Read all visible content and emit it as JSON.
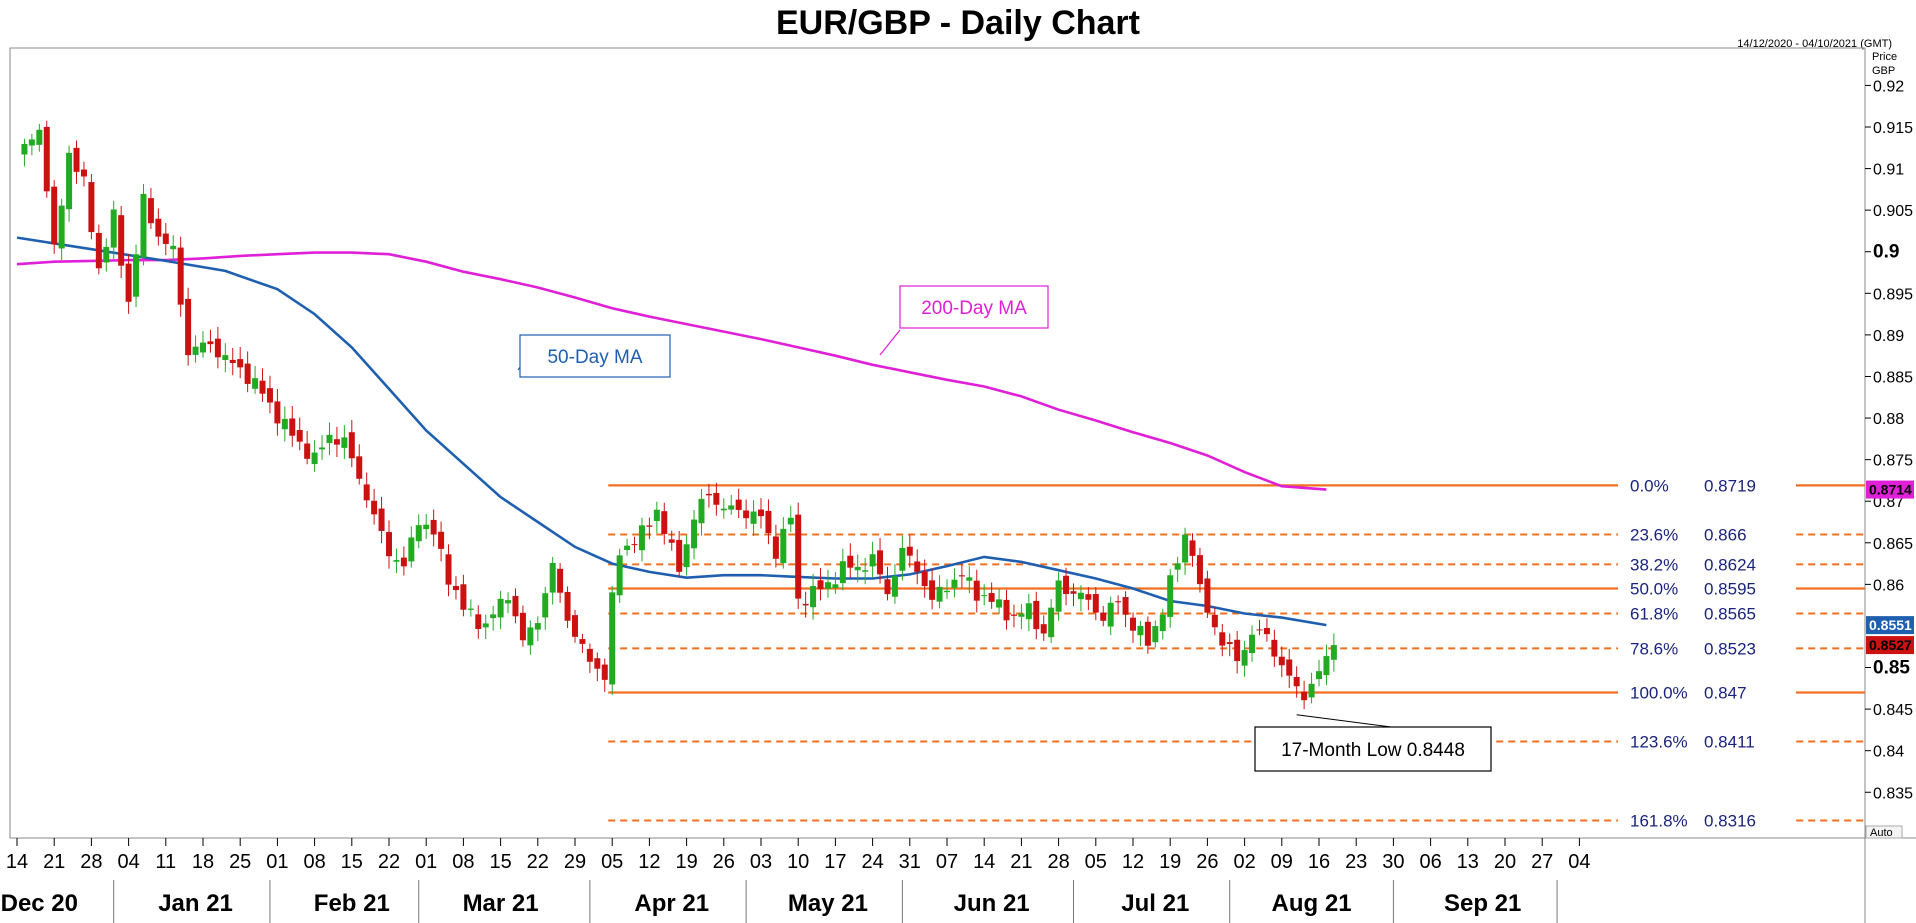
{
  "chart_data": {
    "type": "candlestick",
    "title": "EUR/GBP - Daily Chart",
    "date_range": "14/12/2020 - 04/10/2021 (GMT)",
    "y_axis_title": [
      "Price",
      "GBP"
    ],
    "auto_label": "Auto",
    "ylim": [
      0.8295,
      0.9245
    ],
    "y_ticks": [
      {
        "value": 0.92,
        "label": "0.92"
      },
      {
        "value": 0.915,
        "label": "0.915"
      },
      {
        "value": 0.91,
        "label": "0.91"
      },
      {
        "value": 0.905,
        "label": "0.905"
      },
      {
        "value": 0.9,
        "label": "0.9",
        "bold": true
      },
      {
        "value": 0.895,
        "label": "0.895"
      },
      {
        "value": 0.89,
        "label": "0.89"
      },
      {
        "value": 0.885,
        "label": "0.885"
      },
      {
        "value": 0.88,
        "label": "0.88"
      },
      {
        "value": 0.875,
        "label": "0.875"
      },
      {
        "value": 0.87,
        "label": "0.87"
      },
      {
        "value": 0.865,
        "label": "0.865"
      },
      {
        "value": 0.86,
        "label": "0.86"
      },
      {
        "value": 0.85,
        "label": "0.85",
        "bold": true
      },
      {
        "value": 0.845,
        "label": "0.845"
      },
      {
        "value": 0.84,
        "label": "0.84"
      },
      {
        "value": 0.835,
        "label": "0.835"
      }
    ],
    "x_ticks": [
      {
        "i": 0,
        "label": "14"
      },
      {
        "i": 5,
        "label": "21"
      },
      {
        "i": 10,
        "label": "28"
      },
      {
        "i": 15,
        "label": "04"
      },
      {
        "i": 20,
        "label": "11"
      },
      {
        "i": 25,
        "label": "18"
      },
      {
        "i": 30,
        "label": "25"
      },
      {
        "i": 35,
        "label": "01"
      },
      {
        "i": 40,
        "label": "08"
      },
      {
        "i": 45,
        "label": "15"
      },
      {
        "i": 50,
        "label": "22"
      },
      {
        "i": 55,
        "label": "01"
      },
      {
        "i": 60,
        "label": "08"
      },
      {
        "i": 65,
        "label": "15"
      },
      {
        "i": 70,
        "label": "22"
      },
      {
        "i": 75,
        "label": "29"
      },
      {
        "i": 80,
        "label": "05"
      },
      {
        "i": 85,
        "label": "12"
      },
      {
        "i": 90,
        "label": "19"
      },
      {
        "i": 95,
        "label": "26"
      },
      {
        "i": 100,
        "label": "03"
      },
      {
        "i": 105,
        "label": "10"
      },
      {
        "i": 110,
        "label": "17"
      },
      {
        "i": 115,
        "label": "24"
      },
      {
        "i": 120,
        "label": "31"
      },
      {
        "i": 125,
        "label": "07"
      },
      {
        "i": 130,
        "label": "14"
      },
      {
        "i": 135,
        "label": "21"
      },
      {
        "i": 140,
        "label": "28"
      },
      {
        "i": 145,
        "label": "05"
      },
      {
        "i": 150,
        "label": "12"
      },
      {
        "i": 155,
        "label": "19"
      },
      {
        "i": 160,
        "label": "26"
      },
      {
        "i": 165,
        "label": "02"
      },
      {
        "i": 170,
        "label": "09"
      },
      {
        "i": 175,
        "label": "16"
      },
      {
        "i": 180,
        "label": "23"
      },
      {
        "i": 185,
        "label": "30"
      },
      {
        "i": 190,
        "label": "06"
      },
      {
        "i": 195,
        "label": "13"
      },
      {
        "i": 200,
        "label": "20"
      },
      {
        "i": 205,
        "label": "27"
      },
      {
        "i": 210,
        "label": "04"
      }
    ],
    "months": [
      {
        "i": 3,
        "label": "Dec 20"
      },
      {
        "i": 24,
        "label": "Jan 21"
      },
      {
        "i": 45,
        "label": "Feb 21"
      },
      {
        "i": 65,
        "label": "Mar 21"
      },
      {
        "i": 88,
        "label": "Apr 21"
      },
      {
        "i": 109,
        "label": "May 21"
      },
      {
        "i": 131,
        "label": "Jun 21"
      },
      {
        "i": 153,
        "label": "Jul 21"
      },
      {
        "i": 174,
        "label": "Aug 21"
      },
      {
        "i": 197,
        "label": "Sep 21"
      }
    ],
    "month_separators": [
      13,
      34,
      54,
      77,
      98,
      119,
      142,
      163,
      185,
      207
    ],
    "colors": {
      "up": "#22aa22",
      "down": "#cc1111",
      "ma50": "#1f5fb0",
      "ma200": "#e020d8",
      "fib": "#f07020",
      "fib_text": "#1a237e"
    },
    "candle_anchors": [
      [
        0,
        0.911
      ],
      [
        3,
        0.915
      ],
      [
        5,
        0.9
      ],
      [
        7,
        0.912
      ],
      [
        9,
        0.908
      ],
      [
        11,
        0.898
      ],
      [
        13,
        0.904
      ],
      [
        15,
        0.894
      ],
      [
        17,
        0.906
      ],
      [
        19,
        0.902
      ],
      [
        21,
        0.9
      ],
      [
        23,
        0.888
      ],
      [
        26,
        0.889
      ],
      [
        28,
        0.887
      ],
      [
        30,
        0.886
      ],
      [
        33,
        0.883
      ],
      [
        36,
        0.879
      ],
      [
        38,
        0.877
      ],
      [
        40,
        0.875
      ],
      [
        42,
        0.878
      ],
      [
        44,
        0.877
      ],
      [
        46,
        0.873
      ],
      [
        48,
        0.868
      ],
      [
        50,
        0.864
      ],
      [
        52,
        0.862
      ],
      [
        54,
        0.868
      ],
      [
        56,
        0.866
      ],
      [
        58,
        0.861
      ],
      [
        60,
        0.857
      ],
      [
        63,
        0.855
      ],
      [
        66,
        0.859
      ],
      [
        68,
        0.853
      ],
      [
        70,
        0.856
      ],
      [
        72,
        0.862
      ],
      [
        74,
        0.856
      ],
      [
        76,
        0.852
      ],
      [
        78,
        0.85
      ],
      [
        79,
        0.849
      ],
      [
        80,
        0.858
      ],
      [
        81,
        0.864
      ],
      [
        84,
        0.866
      ],
      [
        86,
        0.869
      ],
      [
        88,
        0.864
      ],
      [
        89,
        0.862
      ],
      [
        91,
        0.868
      ],
      [
        93,
        0.871
      ],
      [
        95,
        0.869
      ],
      [
        97,
        0.869
      ],
      [
        100,
        0.868
      ],
      [
        102,
        0.864
      ],
      [
        104,
        0.868
      ],
      [
        105,
        0.858
      ],
      [
        107,
        0.859
      ],
      [
        109,
        0.86
      ],
      [
        111,
        0.862
      ],
      [
        113,
        0.862
      ],
      [
        115,
        0.863
      ],
      [
        117,
        0.859
      ],
      [
        119,
        0.864
      ],
      [
        121,
        0.862
      ],
      [
        123,
        0.858
      ],
      [
        125,
        0.86
      ],
      [
        127,
        0.861
      ],
      [
        129,
        0.859
      ],
      [
        131,
        0.858
      ],
      [
        134,
        0.856
      ],
      [
        136,
        0.857
      ],
      [
        138,
        0.854
      ],
      [
        140,
        0.86
      ],
      [
        142,
        0.859
      ],
      [
        144,
        0.858
      ],
      [
        146,
        0.856
      ],
      [
        148,
        0.858
      ],
      [
        150,
        0.855
      ],
      [
        152,
        0.853
      ],
      [
        154,
        0.857
      ],
      [
        156,
        0.863
      ],
      [
        157,
        0.866
      ],
      [
        158,
        0.864
      ],
      [
        159,
        0.859
      ],
      [
        162,
        0.853
      ],
      [
        164,
        0.851
      ],
      [
        166,
        0.854
      ],
      [
        168,
        0.854
      ],
      [
        170,
        0.85
      ],
      [
        172,
        0.8475
      ],
      [
        173,
        0.847
      ],
      [
        174,
        0.8475
      ],
      [
        175,
        0.8495
      ],
      [
        176,
        0.851
      ],
      [
        177,
        0.8527
      ]
    ],
    "ma50": [
      [
        0,
        0.9017
      ],
      [
        10,
        0.9003
      ],
      [
        20,
        0.8989
      ],
      [
        28,
        0.8977
      ],
      [
        35,
        0.8955
      ],
      [
        40,
        0.8925
      ],
      [
        45,
        0.8885
      ],
      [
        50,
        0.8835
      ],
      [
        55,
        0.8785
      ],
      [
        60,
        0.8745
      ],
      [
        65,
        0.8705
      ],
      [
        70,
        0.8675
      ],
      [
        75,
        0.8645
      ],
      [
        80,
        0.8625
      ],
      [
        85,
        0.8615
      ],
      [
        90,
        0.8608
      ],
      [
        95,
        0.8611
      ],
      [
        100,
        0.8611
      ],
      [
        105,
        0.8609
      ],
      [
        110,
        0.8607
      ],
      [
        115,
        0.8607
      ],
      [
        120,
        0.8612
      ],
      [
        125,
        0.8622
      ],
      [
        130,
        0.8633
      ],
      [
        135,
        0.8627
      ],
      [
        140,
        0.8617
      ],
      [
        145,
        0.8607
      ],
      [
        150,
        0.8595
      ],
      [
        155,
        0.858
      ],
      [
        160,
        0.8574
      ],
      [
        165,
        0.8565
      ],
      [
        170,
        0.856
      ],
      [
        176,
        0.8551
      ]
    ],
    "ma200": [
      [
        0,
        0.8985
      ],
      [
        5,
        0.8988
      ],
      [
        10,
        0.8989
      ],
      [
        15,
        0.899
      ],
      [
        20,
        0.899
      ],
      [
        25,
        0.8992
      ],
      [
        30,
        0.8995
      ],
      [
        35,
        0.8997
      ],
      [
        40,
        0.8999
      ],
      [
        45,
        0.8999
      ],
      [
        50,
        0.8997
      ],
      [
        55,
        0.8988
      ],
      [
        60,
        0.8976
      ],
      [
        65,
        0.8967
      ],
      [
        70,
        0.8957
      ],
      [
        75,
        0.8945
      ],
      [
        80,
        0.8932
      ],
      [
        85,
        0.8922
      ],
      [
        90,
        0.8913
      ],
      [
        95,
        0.8904
      ],
      [
        100,
        0.8895
      ],
      [
        105,
        0.8885
      ],
      [
        110,
        0.8875
      ],
      [
        115,
        0.8864
      ],
      [
        120,
        0.8855
      ],
      [
        125,
        0.8846
      ],
      [
        130,
        0.8838
      ],
      [
        135,
        0.8826
      ],
      [
        140,
        0.881
      ],
      [
        145,
        0.8797
      ],
      [
        150,
        0.8783
      ],
      [
        155,
        0.877
      ],
      [
        160,
        0.8755
      ],
      [
        165,
        0.8735
      ],
      [
        170,
        0.8718
      ],
      [
        176,
        0.8714
      ]
    ],
    "fib_levels": [
      {
        "pct": "0.0%",
        "value": 0.8719,
        "value_label": "0.8719",
        "style": "solid"
      },
      {
        "pct": "23.6%",
        "value": 0.866,
        "value_label": "0.866",
        "style": "dashed"
      },
      {
        "pct": "38.2%",
        "value": 0.8624,
        "value_label": "0.8624",
        "style": "dashed"
      },
      {
        "pct": "50.0%",
        "value": 0.8595,
        "value_label": "0.8595",
        "style": "solid"
      },
      {
        "pct": "61.8%",
        "value": 0.8565,
        "value_label": "0.8565",
        "style": "dashed"
      },
      {
        "pct": "78.6%",
        "value": 0.8523,
        "value_label": "0.8523",
        "style": "dashed"
      },
      {
        "pct": "100.0%",
        "value": 0.847,
        "value_label": "0.847",
        "style": "solid"
      },
      {
        "pct": "123.6%",
        "value": 0.8411,
        "value_label": "0.8411",
        "style": "dashed"
      },
      {
        "pct": "161.8%",
        "value": 0.8316,
        "value_label": "0.8316",
        "style": "dashed"
      }
    ],
    "fib_start_index": 80,
    "annotations": {
      "ma50_label": "50-Day MA",
      "ma200_label": "200-Day MA",
      "low_label": "17-Month Low 0.8448",
      "low_value": 0.8448,
      "low_index": 172
    },
    "price_tags": [
      {
        "value": 0.8714,
        "label": "0.8714",
        "color": "#e020d8",
        "text_color": "#000000"
      },
      {
        "value": 0.8551,
        "label": "0.8551",
        "color": "#1f5fb0",
        "text_color": "#ffffff"
      },
      {
        "value": 0.8527,
        "label": "0.8527",
        "color": "#cc1111",
        "text_color": "#000000"
      }
    ]
  }
}
